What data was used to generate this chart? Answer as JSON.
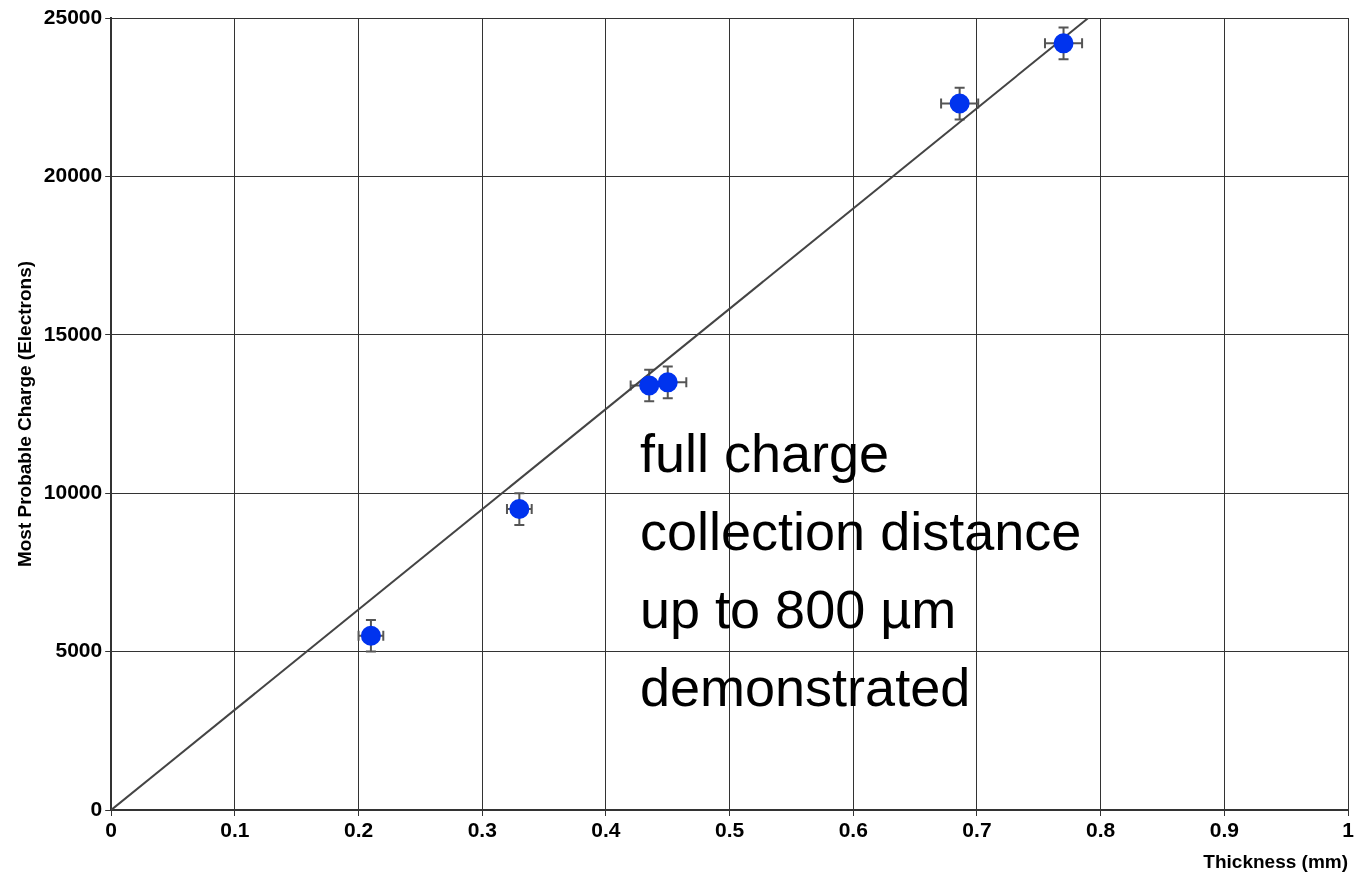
{
  "chart_data": {
    "type": "scatter",
    "xlabel": "Thickness (mm)",
    "ylabel": "Most Probable Charge (Electrons)",
    "xlim": [
      0,
      1
    ],
    "ylim": [
      0,
      25000
    ],
    "xticks": [
      0,
      0.1,
      0.2,
      0.3,
      0.4,
      0.5,
      0.6,
      0.7,
      0.8,
      0.9,
      1
    ],
    "yticks": [
      0,
      5000,
      10000,
      15000,
      20000,
      25000
    ],
    "grid": true,
    "legend": false,
    "marker": "circle",
    "series": [
      {
        "type": "scatter",
        "color": "#0033ee",
        "x": [
          0.21,
          0.33,
          0.435,
          0.45,
          0.686,
          0.77
        ],
        "values": [
          5500,
          9500,
          13400,
          13500,
          22300,
          24200
        ],
        "errors": [
          500,
          500,
          500,
          500,
          500,
          500
        ],
        "xerrors": [
          0.01,
          0.01,
          0.015,
          0.015,
          0.015,
          0.015
        ]
      },
      {
        "type": "line",
        "color": "#444444",
        "x": [
          0,
          0.79
        ],
        "values": [
          0,
          25000
        ],
        "marker": "none",
        "line_style": "solid"
      }
    ],
    "annotations": [
      "full charge\ncollection distance\nup to 800 µm\ndemonstrated"
    ]
  }
}
